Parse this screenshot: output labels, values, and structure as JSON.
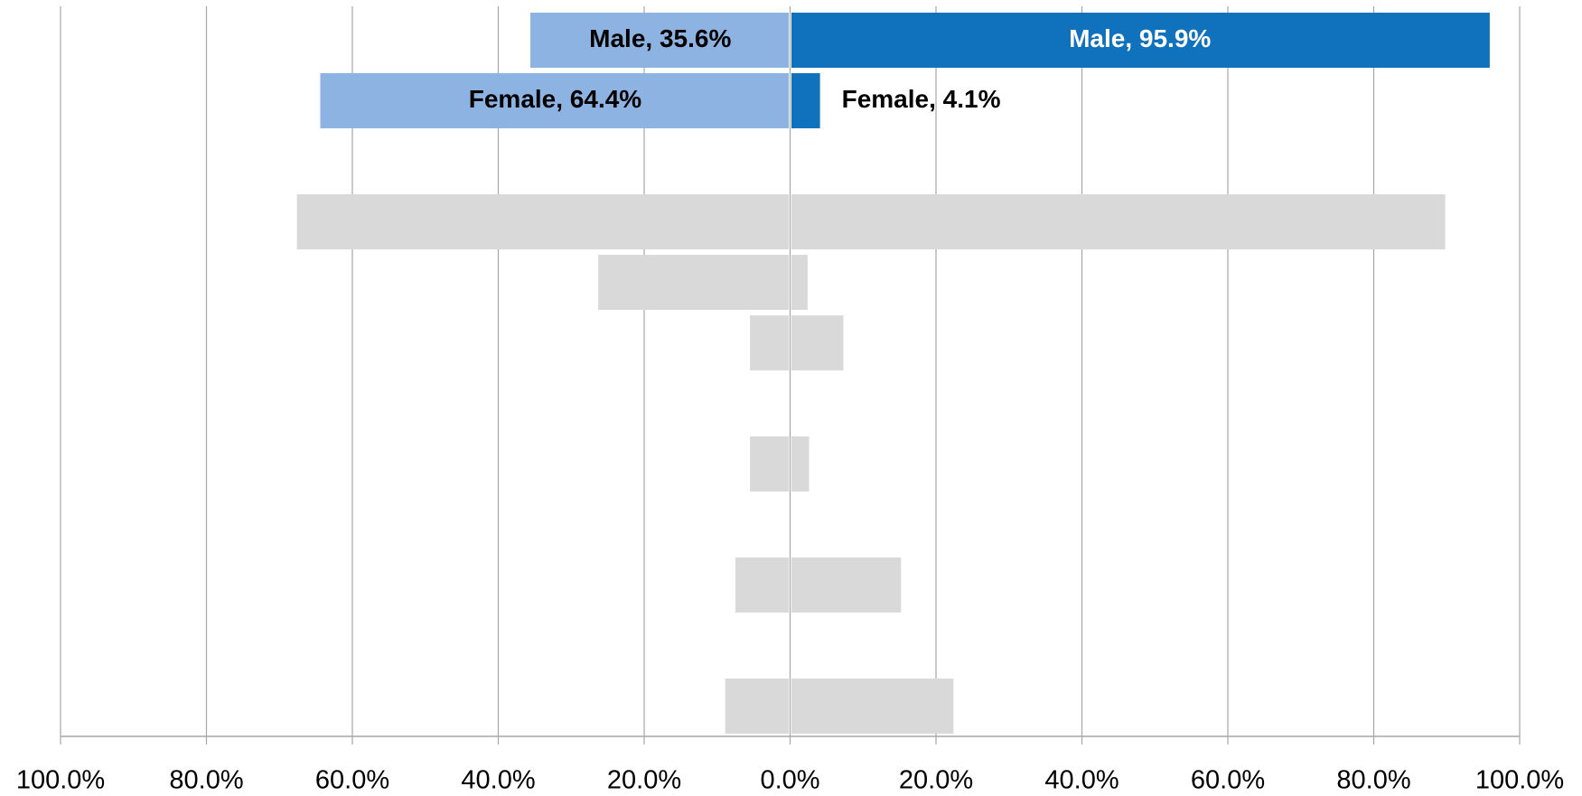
{
  "chart_data": {
    "type": "diverging_bar",
    "categories": [
      null,
      null,
      null,
      null,
      null,
      null,
      null,
      null,
      null,
      null,
      null,
      null
    ],
    "series": [
      {
        "values": [
          -35.6,
          -64.4,
          null,
          -67.6,
          -26.3,
          -5.5,
          null,
          -5.5,
          null,
          -7.5,
          null,
          -8.9
        ],
        "colors": [
          "#8db3e2",
          "#8db3e2",
          null,
          "#d9d9d9",
          "#d9d9d9",
          "#d9d9d9",
          null,
          "#d9d9d9",
          null,
          "#d9d9d9",
          null,
          "#d9d9d9"
        ],
        "value_labels": [
          "Male, 35.6%",
          "Female, 64.4%",
          null,
          null,
          null,
          null,
          null,
          null,
          null,
          null,
          null,
          null
        ]
      },
      {
        "values": [
          95.9,
          4.1,
          null,
          89.8,
          2.4,
          7.3,
          null,
          2.6,
          null,
          15.2,
          null,
          22.4
        ],
        "colors": [
          "#1072bd",
          "#1072bd",
          null,
          "#d9d9d9",
          "#d9d9d9",
          "#d9d9d9",
          null,
          "#d9d9d9",
          null,
          "#d9d9d9",
          null,
          "#d9d9d9"
        ],
        "value_labels": [
          "Male, 95.9%",
          "Female, 4.1%",
          null,
          null,
          null,
          null,
          null,
          null,
          null,
          null,
          null,
          null
        ]
      }
    ],
    "xlim": [
      -100,
      100
    ],
    "xticks": [
      {
        "value": -100,
        "label": "100.0%"
      },
      {
        "value": -80,
        "label": "80.0%"
      },
      {
        "value": -60,
        "label": "60.0%"
      },
      {
        "value": -40,
        "label": "40.0%"
      },
      {
        "value": -20,
        "label": "20.0%"
      },
      {
        "value": 0,
        "label": "0.0%"
      },
      {
        "value": 20,
        "label": "20.0%"
      },
      {
        "value": 40,
        "label": "40.0%"
      },
      {
        "value": 60,
        "label": "60.0%"
      },
      {
        "value": 80,
        "label": "80.0%"
      },
      {
        "value": 100,
        "label": "100.0%"
      }
    ],
    "grid": true
  }
}
